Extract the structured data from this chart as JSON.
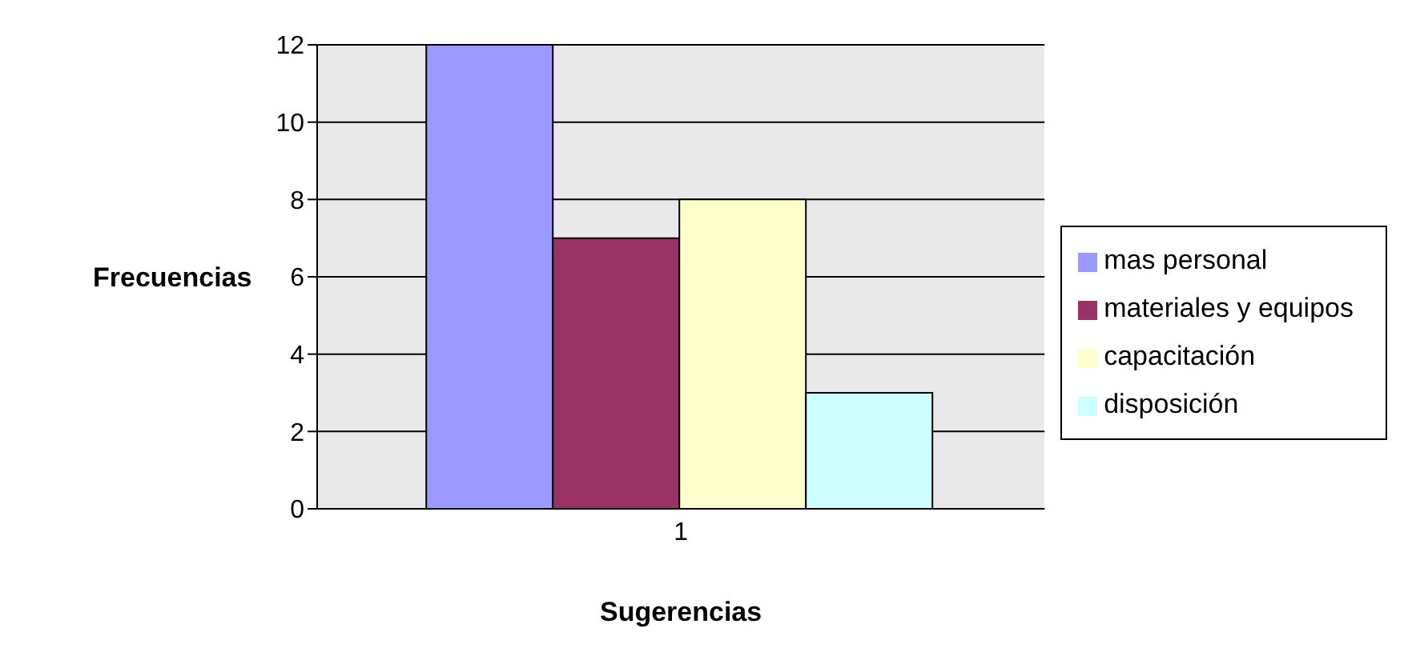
{
  "chart_data": {
    "type": "bar",
    "xlabel": "Sugerencias",
    "ylabel": "Frecuencias",
    "categories": [
      "1"
    ],
    "series": [
      {
        "name": "mas personal",
        "color": "#9999ff",
        "values": [
          12
        ]
      },
      {
        "name": "materiales y equipos",
        "color": "#993366",
        "values": [
          7
        ]
      },
      {
        "name": "capacitación",
        "color": "#ffffcc",
        "values": [
          8
        ]
      },
      {
        "name": "disposición",
        "color": "#ccffff",
        "values": [
          3
        ]
      }
    ],
    "ylim": [
      0,
      12
    ],
    "yticks": [
      0,
      2,
      4,
      6,
      8,
      10,
      12
    ],
    "grid": "y",
    "legend": "right"
  }
}
